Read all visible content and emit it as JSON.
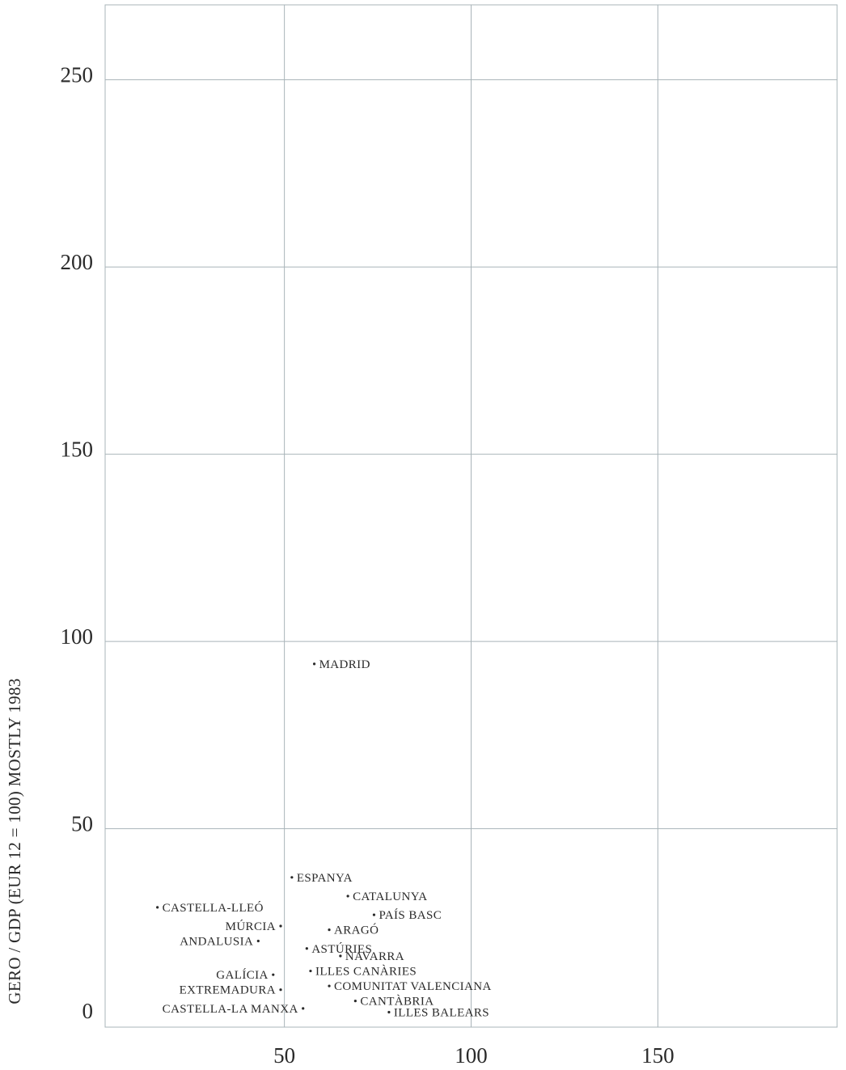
{
  "chart_data": {
    "type": "scatter",
    "title": "",
    "xlabel": "",
    "ylabel": "GERO / GDP (EUR 12 = 100) MOSTLY 1983",
    "xlim": [
      2,
      198
    ],
    "ylim": [
      -3,
      270
    ],
    "x_ticks": [
      50,
      100,
      150
    ],
    "y_ticks": [
      0,
      50,
      100,
      150,
      200,
      250
    ],
    "grid": true,
    "points": [
      {
        "label": "MADRID",
        "x": 58,
        "y": 94,
        "anchor": "right"
      },
      {
        "label": "ESPANYA",
        "x": 52,
        "y": 37,
        "anchor": "right"
      },
      {
        "label": "CATALUNYA",
        "x": 67,
        "y": 32,
        "anchor": "right"
      },
      {
        "label": "CASTELLA-LLEÓ",
        "x": 16,
        "y": 29,
        "anchor": "right"
      },
      {
        "label": "PAÍS BASC",
        "x": 74,
        "y": 27,
        "anchor": "right"
      },
      {
        "label": "MÚRCIA",
        "x": 49,
        "y": 24,
        "anchor": "left"
      },
      {
        "label": "ARAGÓ",
        "x": 62,
        "y": 23,
        "anchor": "right"
      },
      {
        "label": "ANDALUSIA",
        "x": 43,
        "y": 20,
        "anchor": "left"
      },
      {
        "label": "ASTÚRIES",
        "x": 56,
        "y": 18,
        "anchor": "right"
      },
      {
        "label": "NAVARRA",
        "x": 65,
        "y": 16,
        "anchor": "right"
      },
      {
        "label": "ILLES CANÀRIES",
        "x": 57,
        "y": 12,
        "anchor": "right"
      },
      {
        "label": "GALÍCIA",
        "x": 47,
        "y": 11,
        "anchor": "left"
      },
      {
        "label": "EXTREMADURA",
        "x": 49,
        "y": 7,
        "anchor": "left"
      },
      {
        "label": "COMUNITAT VALENCIANA",
        "x": 62,
        "y": 8,
        "anchor": "right"
      },
      {
        "label": "CANTÀBRIA",
        "x": 69,
        "y": 4,
        "anchor": "right"
      },
      {
        "label": "CASTELLA-LA MANXA",
        "x": 55,
        "y": 2,
        "anchor": "left"
      },
      {
        "label": "ILLES BALEARS",
        "x": 78,
        "y": 1,
        "anchor": "right"
      }
    ]
  }
}
